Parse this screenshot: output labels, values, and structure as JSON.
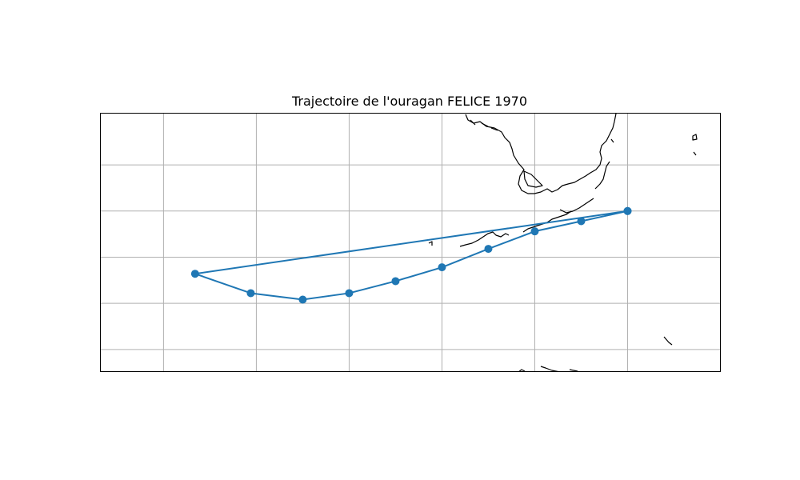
{
  "title": "Trajectoire de l'ouragan FELICE 1970",
  "colors": {
    "track": "#1f77b4",
    "coast": "#000000",
    "grid": "#b0b0b0",
    "background": "#ffffff"
  },
  "chart_data": {
    "type": "map-track",
    "title": "Trajectoire de l'ouragan FELICE 1970",
    "xlim": [
      -98.4,
      -65.0
    ],
    "ylim": [
      16.3,
      30.3
    ],
    "grid": true,
    "gridlines_lon": [
      -95,
      -90,
      -85,
      -80,
      -75,
      -70
    ],
    "gridlines_lat": [
      17.5,
      20,
      22.5,
      25,
      27.5
    ],
    "track": {
      "lon": [
        -70.0,
        -72.5,
        -75.0,
        -77.5,
        -80.0,
        -82.5,
        -85.0,
        -87.5,
        -90.3,
        -93.3,
        -70.0
      ],
      "lat": [
        25.0,
        24.45,
        23.9,
        22.95,
        21.95,
        21.2,
        20.55,
        20.2,
        20.55,
        21.6,
        25.0
      ],
      "marker": "circle"
    }
  }
}
